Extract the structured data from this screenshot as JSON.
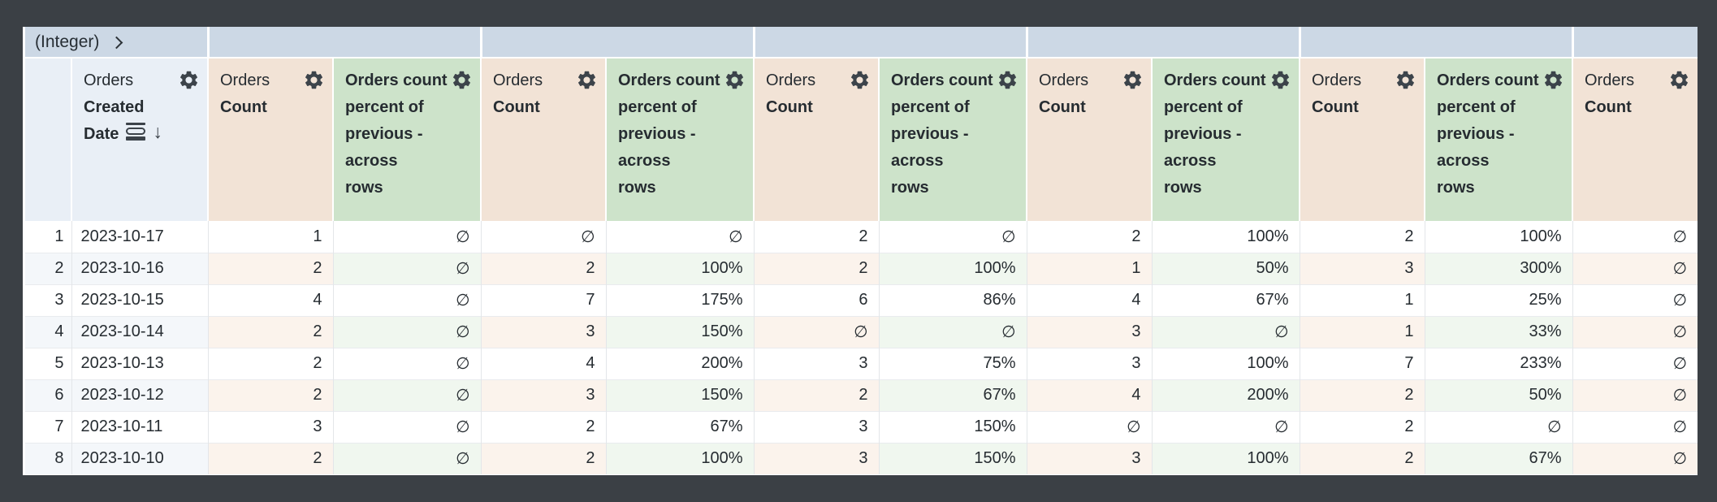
{
  "pivot_band": {
    "label": "(Integer)",
    "expand_icon": "chevron-right-icon"
  },
  "headers": {
    "date": {
      "view": "Orders",
      "field": "Created Date",
      "field_lines": [
        "Created",
        "Date"
      ],
      "icons": [
        "row-grouping-icon",
        "sort-desc-arrow-icon"
      ],
      "sort": "desc",
      "gear_icon": "gear-icon"
    },
    "count": {
      "view": "Orders",
      "field": "Count",
      "field_lines": [
        "Count"
      ],
      "gear_icon": "gear-icon"
    },
    "pct": {
      "view": "",
      "field": "Orders count percent of previous - across rows",
      "field_lines": [
        "Orders count",
        "percent of",
        "previous -",
        "across",
        "rows"
      ],
      "gear_icon": "gear-icon"
    }
  },
  "column_layout": [
    "rownum",
    "date",
    "count",
    "pct",
    "count",
    "pct",
    "count",
    "pct",
    "count",
    "pct",
    "count",
    "pct",
    "count"
  ],
  "null_symbol": "∅",
  "sort_arrow_glyph": "↓",
  "rows": [
    [
      "1",
      "2023-10-17",
      "1",
      "∅",
      "∅",
      "∅",
      "2",
      "∅",
      "2",
      "100%",
      "2",
      "100%",
      "∅"
    ],
    [
      "2",
      "2023-10-16",
      "2",
      "∅",
      "2",
      "100%",
      "2",
      "100%",
      "1",
      "50%",
      "3",
      "300%",
      "∅"
    ],
    [
      "3",
      "2023-10-15",
      "4",
      "∅",
      "7",
      "175%",
      "6",
      "86%",
      "4",
      "67%",
      "1",
      "25%",
      "∅"
    ],
    [
      "4",
      "2023-10-14",
      "2",
      "∅",
      "3",
      "150%",
      "∅",
      "∅",
      "3",
      "∅",
      "1",
      "33%",
      "∅"
    ],
    [
      "5",
      "2023-10-13",
      "2",
      "∅",
      "4",
      "200%",
      "3",
      "75%",
      "3",
      "100%",
      "7",
      "233%",
      "∅"
    ],
    [
      "6",
      "2023-10-12",
      "2",
      "∅",
      "3",
      "150%",
      "2",
      "67%",
      "4",
      "200%",
      "2",
      "50%",
      "∅"
    ],
    [
      "7",
      "2023-10-11",
      "3",
      "∅",
      "2",
      "67%",
      "3",
      "150%",
      "∅",
      "∅",
      "2",
      "∅",
      "∅"
    ],
    [
      "8",
      "2023-10-10",
      "2",
      "∅",
      "2",
      "100%",
      "3",
      "150%",
      "3",
      "100%",
      "2",
      "67%",
      "∅"
    ]
  ],
  "colors": {
    "frame": "#3b4045",
    "band": "#ccd8e5",
    "dimension_header": "#e9eff6",
    "count_header": "#f2e3d6",
    "percent_header": "#cde3ca",
    "dimension_zebra": "#f4f7fa",
    "count_zebra": "#fbf3ec",
    "percent_zebra": "#f0f7ef",
    "text": "#262c31"
  }
}
